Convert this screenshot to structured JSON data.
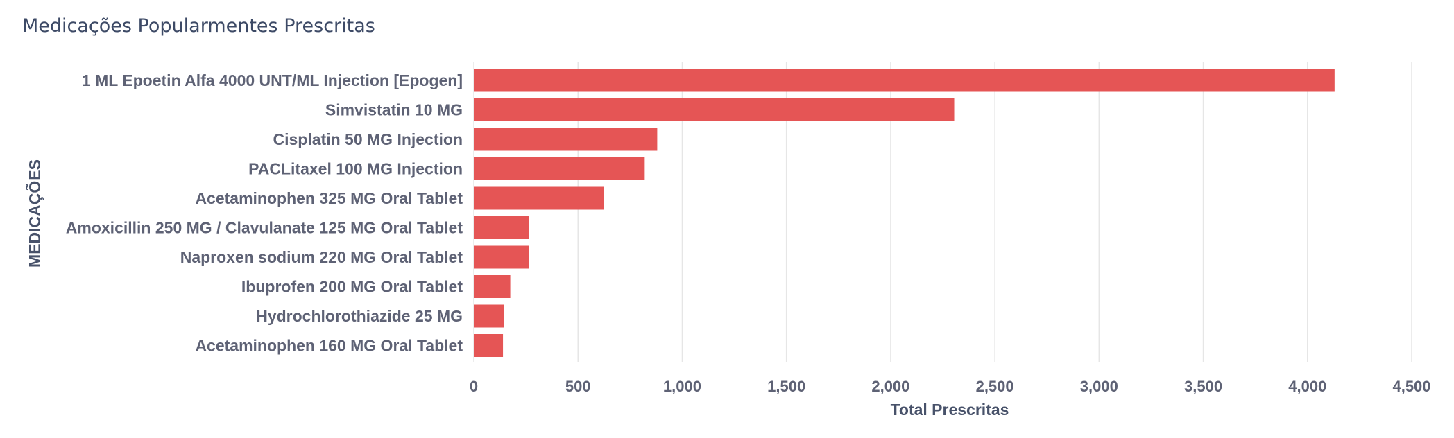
{
  "chart_data": {
    "type": "bar",
    "orientation": "horizontal",
    "title": "Medicações Popularmentes Prescritas",
    "xlabel": "Total Prescritas",
    "ylabel": "MEDICAÇÕES",
    "categories": [
      "1 ML Epoetin Alfa 4000 UNT/ML Injection [Epogen]",
      "Simvistatin 10 MG",
      "Cisplatin 50 MG Injection",
      "PACLitaxel 100 MG Injection",
      "Acetaminophen 325 MG Oral Tablet",
      "Amoxicillin 250 MG / Clavulanate 125 MG Oral Tablet",
      "Naproxen sodium 220 MG Oral Tablet",
      "Ibuprofen 200 MG Oral Tablet",
      "Hydrochlorothiazide 25 MG",
      "Acetaminophen 160 MG Oral Tablet"
    ],
    "values": [
      4130,
      2305,
      880,
      820,
      625,
      265,
      265,
      175,
      145,
      140
    ],
    "xlim": [
      0,
      4500
    ],
    "xticks": [
      0,
      500,
      1000,
      1500,
      2000,
      2500,
      3000,
      3500,
      4000,
      4500
    ],
    "xtick_labels": [
      "0",
      "500",
      "1,000",
      "1,500",
      "2,000",
      "2,500",
      "3,000",
      "3,500",
      "4,000",
      "4,500"
    ],
    "bar_color": "#e55555",
    "grid": true,
    "legend": false
  }
}
